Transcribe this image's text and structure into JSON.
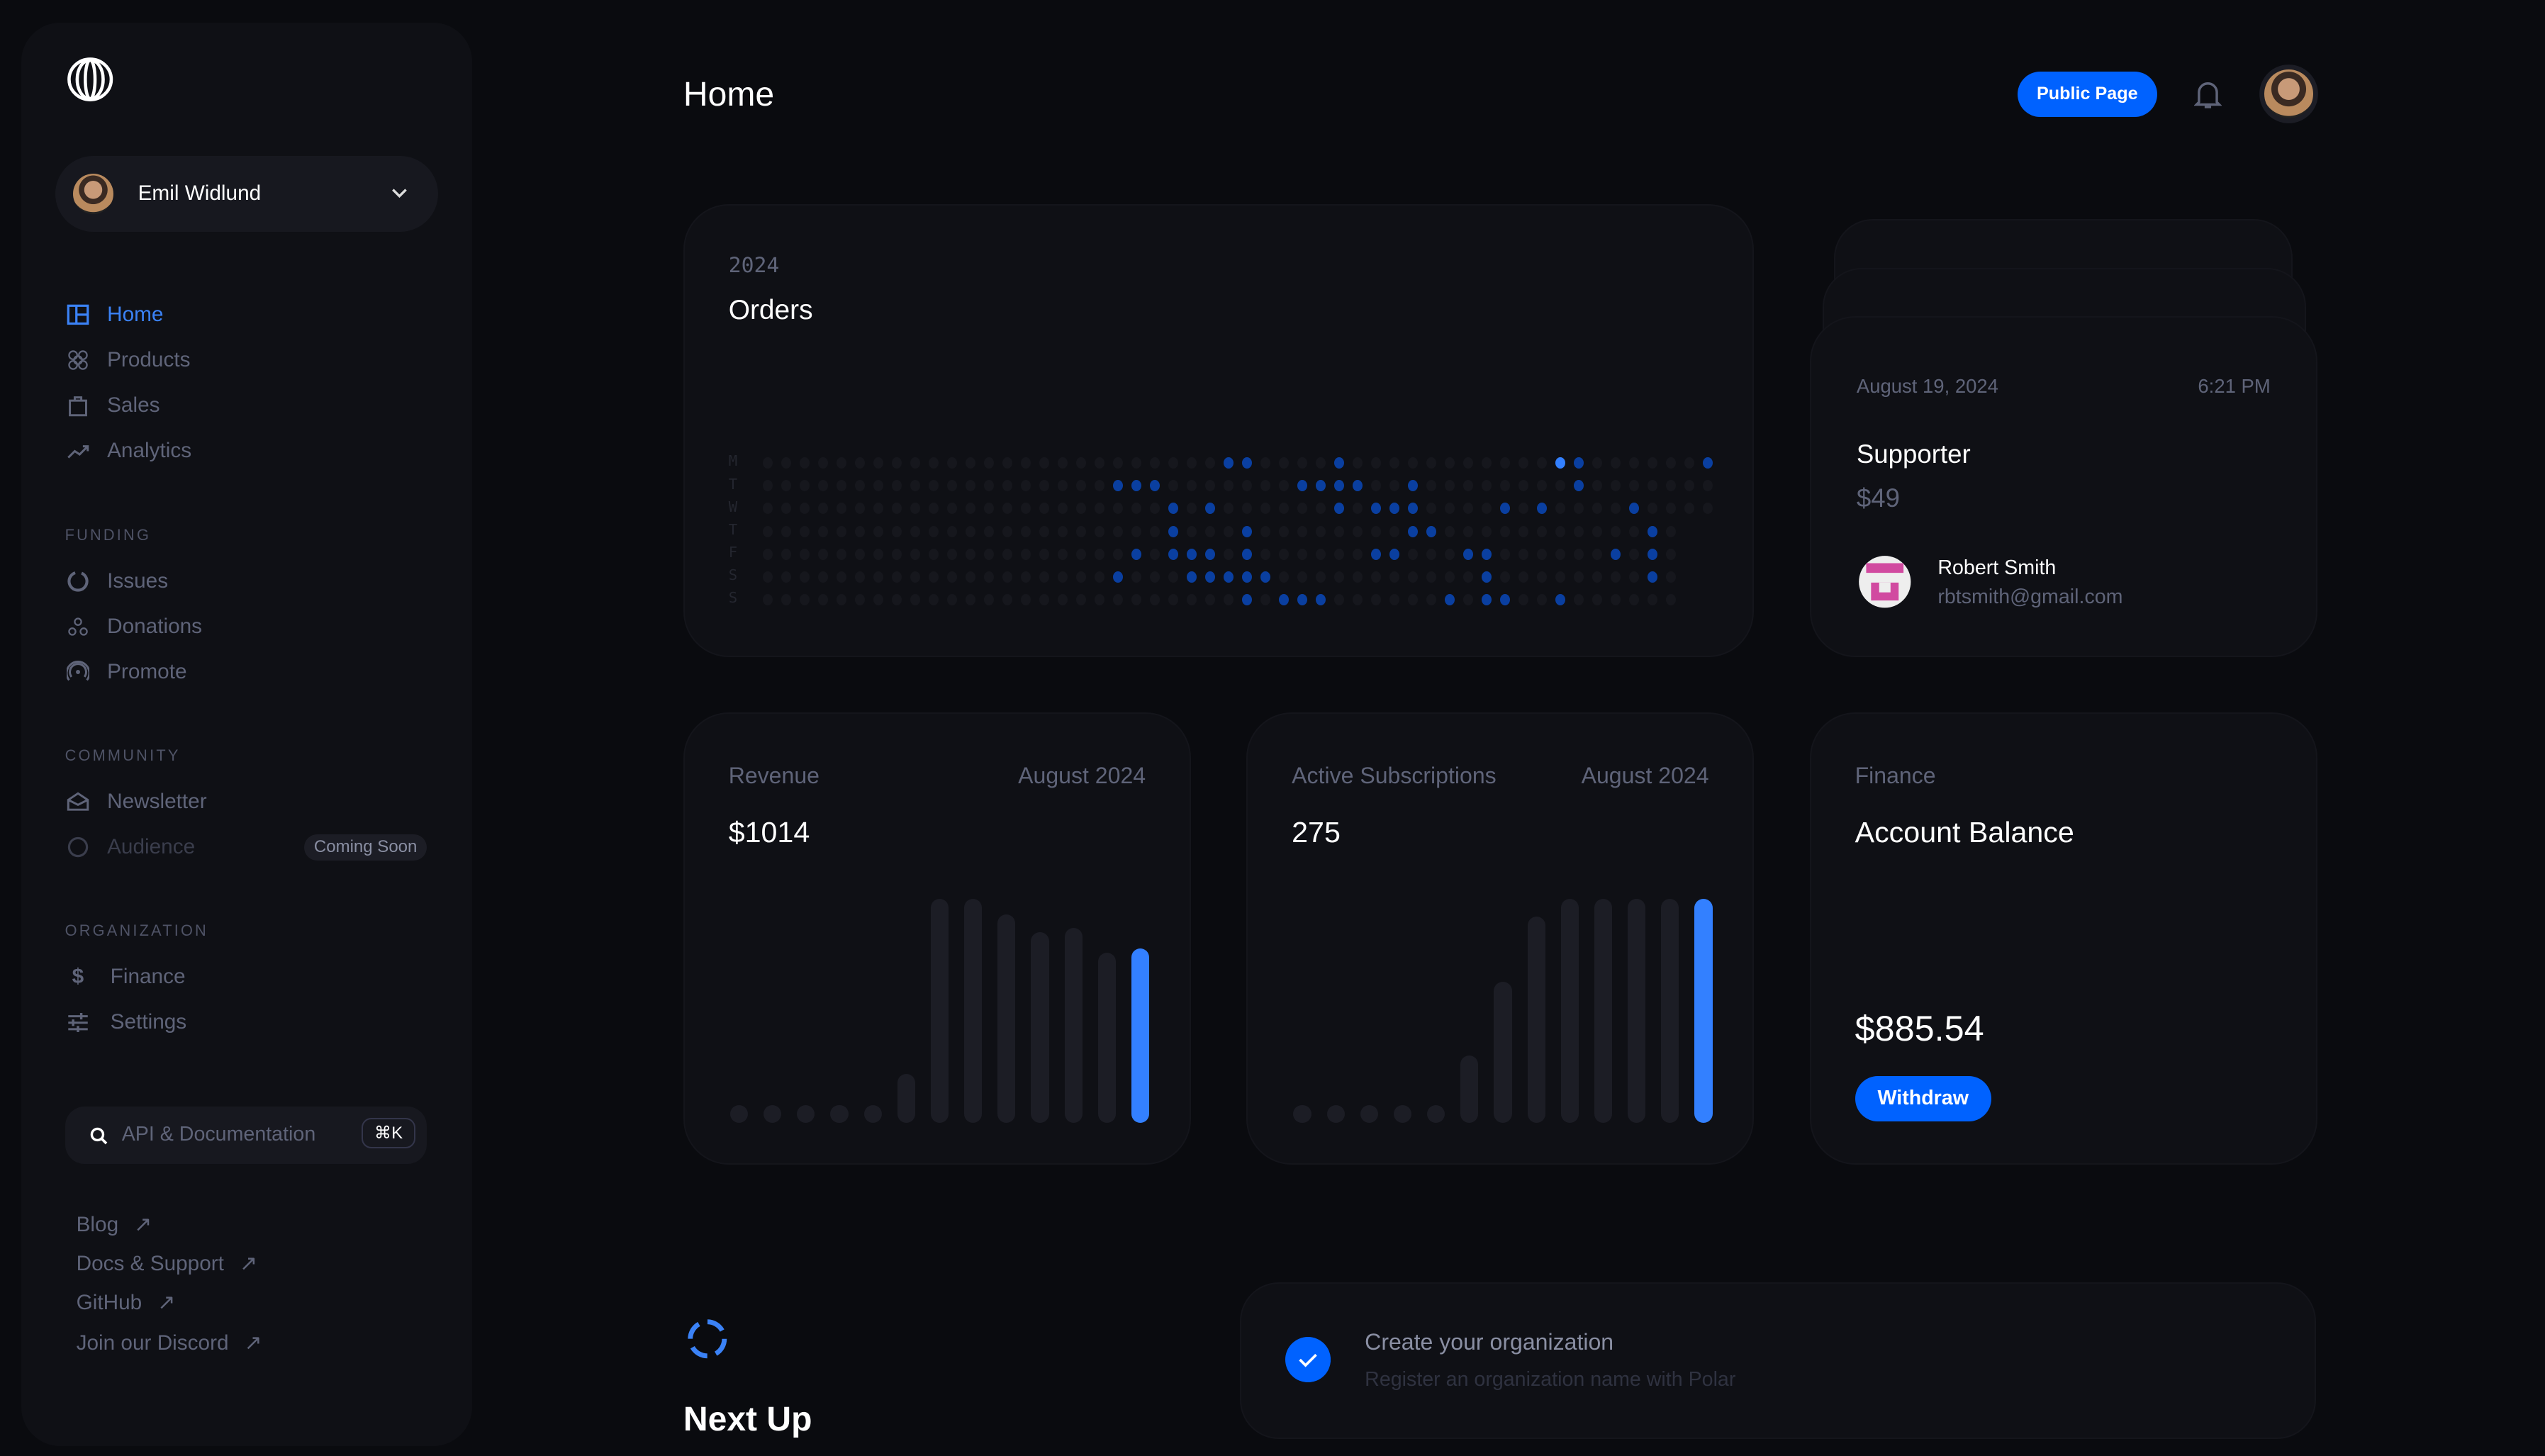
{
  "header": {
    "title": "Home",
    "public_page": "Public Page"
  },
  "account": {
    "name": "Emil Widlund"
  },
  "nav": {
    "main": [
      {
        "label": "Home",
        "icon": "home-icon",
        "active": true
      },
      {
        "label": "Products",
        "icon": "products-icon"
      },
      {
        "label": "Sales",
        "icon": "sales-icon"
      },
      {
        "label": "Analytics",
        "icon": "analytics-icon"
      }
    ],
    "funding_title": "FUNDING",
    "funding": [
      {
        "label": "Issues"
      },
      {
        "label": "Donations"
      },
      {
        "label": "Promote"
      }
    ],
    "community_title": "COMMUNITY",
    "community": [
      {
        "label": "Newsletter"
      },
      {
        "label": "Audience",
        "badge": "Coming Soon"
      }
    ],
    "organization_title": "ORGANIZATION",
    "organization": [
      {
        "label": "Finance"
      },
      {
        "label": "Settings"
      }
    ]
  },
  "search": {
    "placeholder": "API & Documentation",
    "shortcut": "⌘K"
  },
  "links": [
    {
      "label": "Blog"
    },
    {
      "label": "Docs & Support"
    },
    {
      "label": "GitHub"
    },
    {
      "label": "Join our Discord"
    }
  ],
  "orders": {
    "year": "2024",
    "title": "Orders",
    "day_labels": [
      "M",
      "T",
      "W",
      "T",
      "F",
      "S",
      "S"
    ],
    "columns": [
      52,
      52,
      52,
      50,
      50,
      50,
      50
    ],
    "highlighted": [
      [
        25,
        26,
        31,
        43,
        44,
        51
      ],
      [
        19,
        20,
        21,
        29,
        30,
        31,
        32,
        35,
        44
      ],
      [
        22,
        24,
        31,
        33,
        34,
        35,
        40,
        42,
        47
      ],
      [
        22,
        26,
        35,
        36,
        48
      ],
      [
        20,
        22,
        23,
        24,
        26,
        33,
        34,
        38,
        39,
        46,
        48
      ],
      [
        19,
        23,
        24,
        25,
        26,
        27,
        39,
        48
      ],
      [
        26,
        28,
        29,
        30,
        37,
        39,
        40,
        43
      ]
    ],
    "today": [
      0,
      43
    ]
  },
  "supporter": {
    "date": "August 19, 2024",
    "time": "6:21 PM",
    "tier": "Supporter",
    "price": "$49",
    "name": "Robert Smith",
    "email": "rbtsmith@gmail.com"
  },
  "revenue": {
    "label": "Revenue",
    "period": "August 2024",
    "value": "$1014"
  },
  "subscriptions": {
    "label": "Active Subscriptions",
    "period": "August 2024",
    "value": "275"
  },
  "finance": {
    "label": "Finance",
    "title": "Account Balance",
    "balance": "$885.54",
    "withdraw": "Withdraw"
  },
  "next_up": {
    "title": "Next Up",
    "task_title": "Create your organization",
    "task_desc": "Register an organization name with Polar"
  },
  "chart_data": [
    {
      "type": "bar",
      "title": "Revenue",
      "values": [
        0,
        0,
        0,
        0,
        0,
        22,
        100,
        100,
        93,
        85,
        87,
        76,
        78
      ]
    },
    {
      "type": "bar",
      "title": "Active Subscriptions",
      "values": [
        0,
        0,
        0,
        0,
        0,
        30,
        63,
        92,
        100,
        100,
        100,
        100,
        100
      ]
    }
  ],
  "colors": {
    "accent": "#0062ff",
    "bar_active": "#3380ff",
    "dot_active": "#0a3fa0",
    "dot_today": "#3380ff"
  }
}
